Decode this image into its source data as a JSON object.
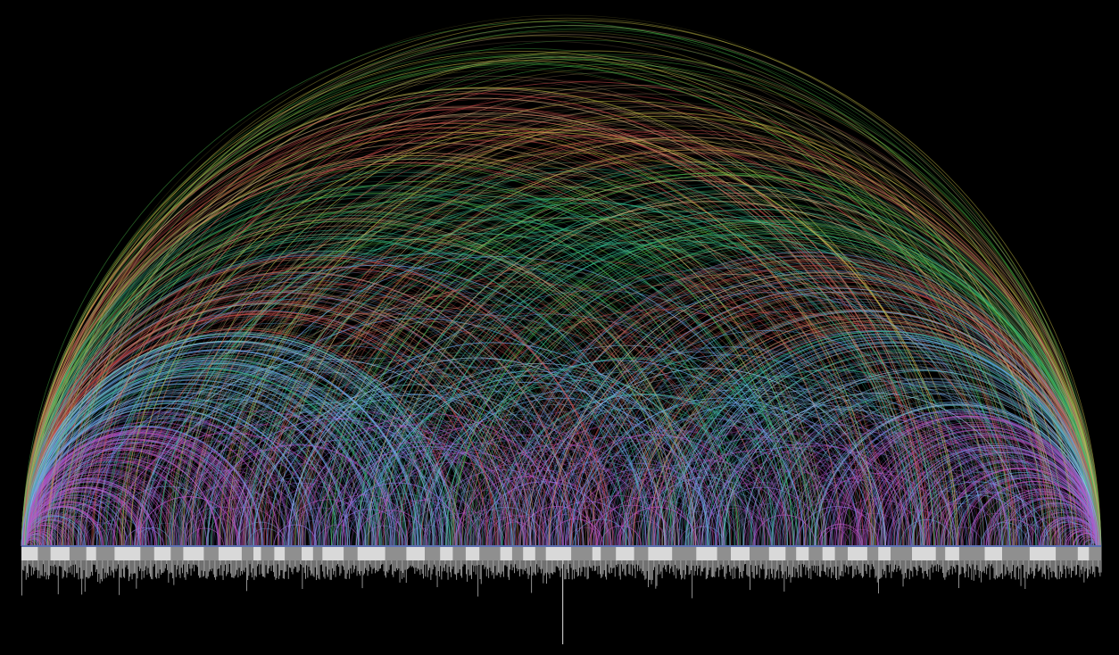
{
  "colors": {
    "background": "#000000",
    "axis": "#5b6fb0",
    "segment_light": "#d9d9d9",
    "segment_dark": "#8f8f8f",
    "bars": "#bdbdbd"
  },
  "arc_palette": [
    {
      "name": "green",
      "hex": "#4fc24a"
    },
    {
      "name": "yellow",
      "hex": "#c8c24a"
    },
    {
      "name": "teal",
      "hex": "#34b38a"
    },
    {
      "name": "red",
      "hex": "#c44a4a"
    },
    {
      "name": "tan",
      "hex": "#c9a878"
    },
    {
      "name": "blue",
      "hex": "#6aa3e8"
    },
    {
      "name": "light-blue",
      "hex": "#9cc8f0"
    },
    {
      "name": "magenta",
      "hex": "#c24fc8"
    },
    {
      "name": "violet",
      "hex": "#8f6ae0"
    }
  ],
  "segments": {
    "count": 66,
    "pattern": [
      "light",
      "dark"
    ]
  }
}
